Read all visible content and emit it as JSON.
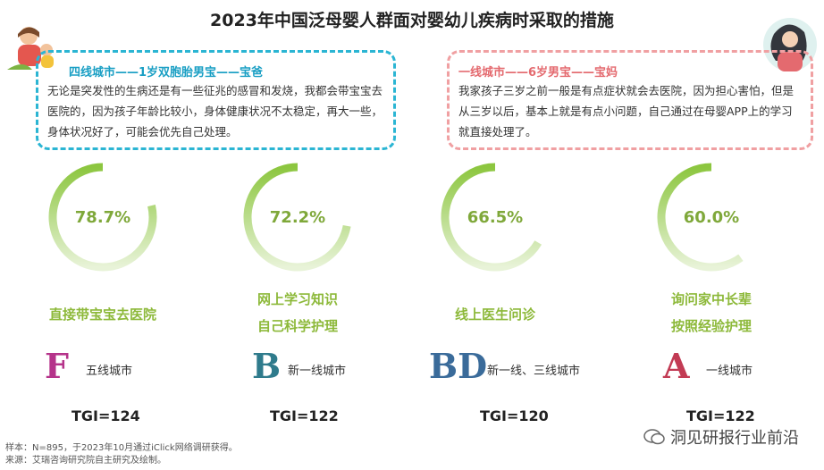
{
  "title": "2023年中国泛母婴人群面对婴幼儿疾病时采取的措施",
  "quotes": {
    "left": {
      "heading": "四线城市——1岁双胞胎男宝——宝爸",
      "body": "无论是突发性的生病还是有一些征兆的感冒和发烧，我都会带宝宝去医院的，因为孩子年龄比较小，身体健康状况不太稳定，再大一些，身体状况好了，可能会优先自己处理。"
    },
    "right": {
      "heading": "一线城市——6岁男宝——宝妈",
      "body": "我家孩子三岁之前一般是有点症状就会去医院，因为担心害怕，但是从三岁以后，基本上就是有点小问题，自己通过在母婴APP上的学习就直接处理了。"
    }
  },
  "chart_data": {
    "type": "donut",
    "title": "2023年中国泛母婴人群面对婴幼儿疾病时采取的措施",
    "unit": "%",
    "categories": [
      "直接带宝宝去医院",
      "网上学习知识自己科学护理",
      "线上医生问诊",
      "询问家中长辈按照经验护理"
    ],
    "values": [
      78.7,
      72.2,
      66.5,
      60.0
    ],
    "value_labels": [
      "78.7%",
      "72.2%",
      "66.5%",
      "60.0%"
    ],
    "colors": {
      "ring_start": "#8cc63f",
      "ring_end": "#e8f3d8",
      "label": "#7fa83a",
      "measure_text": "#8db93a"
    }
  },
  "measures": [
    {
      "line1": "直接带宝宝去医院",
      "line2": "",
      "letter": "F",
      "city": "五线城市",
      "tgi": "TGI=124",
      "letter_color": "#b5338a"
    },
    {
      "line1": "网上学习知识",
      "line2": "自己科学护理",
      "letter": "B",
      "city": "新一线城市",
      "tgi": "TGI=122",
      "letter_color": "#2f7b8c"
    },
    {
      "line1": "线上医生问诊",
      "line2": "",
      "letter": "BD",
      "city": "新一线、三线城市",
      "tgi": "TGI=120",
      "letter_color": "#3a6b9a"
    },
    {
      "line1": "询问家中长辈",
      "line2": "按照经验护理",
      "letter": "A",
      "city": "一线城市",
      "tgi": "TGI=122",
      "letter_color": "#c23b54"
    }
  ],
  "notes": {
    "sample": "样本：N=895，于2023年10月通过iClick网络调研获得。",
    "source": "来源：艾瑞咨询研究院自主研究及绘制。"
  },
  "watermark": "洞见研报行业前沿"
}
